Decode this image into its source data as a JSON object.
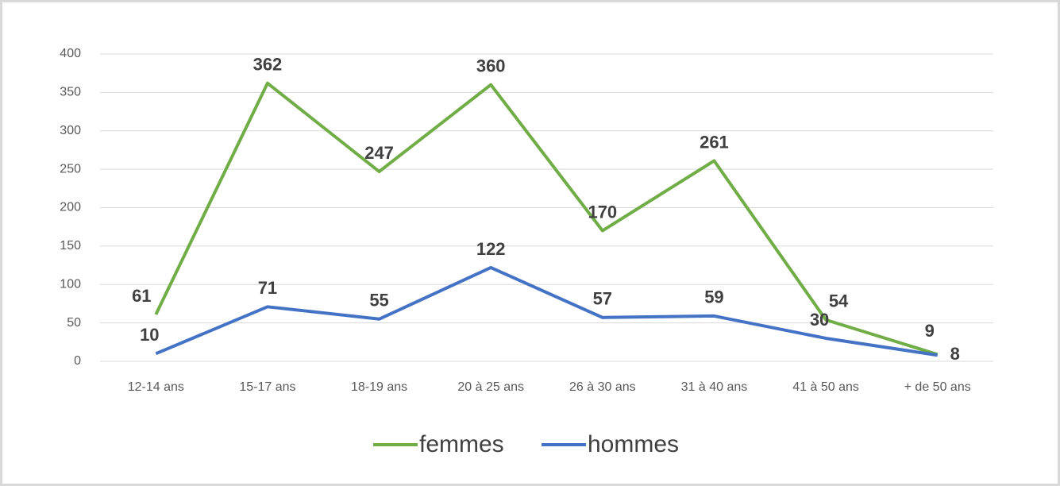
{
  "chart_data": {
    "type": "line",
    "categories": [
      "12-14 ans",
      "15-17 ans",
      "18-19 ans",
      "20 à 25 ans",
      "26 à 30 ans",
      "31 à 40 ans",
      "41 à 50 ans",
      "+ de 50 ans"
    ],
    "series": [
      {
        "name": "femmes",
        "color": "#70ad47",
        "values": [
          61,
          362,
          247,
          360,
          170,
          261,
          54,
          9
        ]
      },
      {
        "name": "hommes",
        "color": "#4472c4",
        "values": [
          10,
          71,
          55,
          122,
          57,
          59,
          30,
          8
        ]
      }
    ],
    "ylim": [
      0,
      400
    ],
    "yticks": [
      0,
      50,
      100,
      150,
      200,
      250,
      300,
      350,
      400
    ],
    "grid": true,
    "legend": "bottom"
  }
}
